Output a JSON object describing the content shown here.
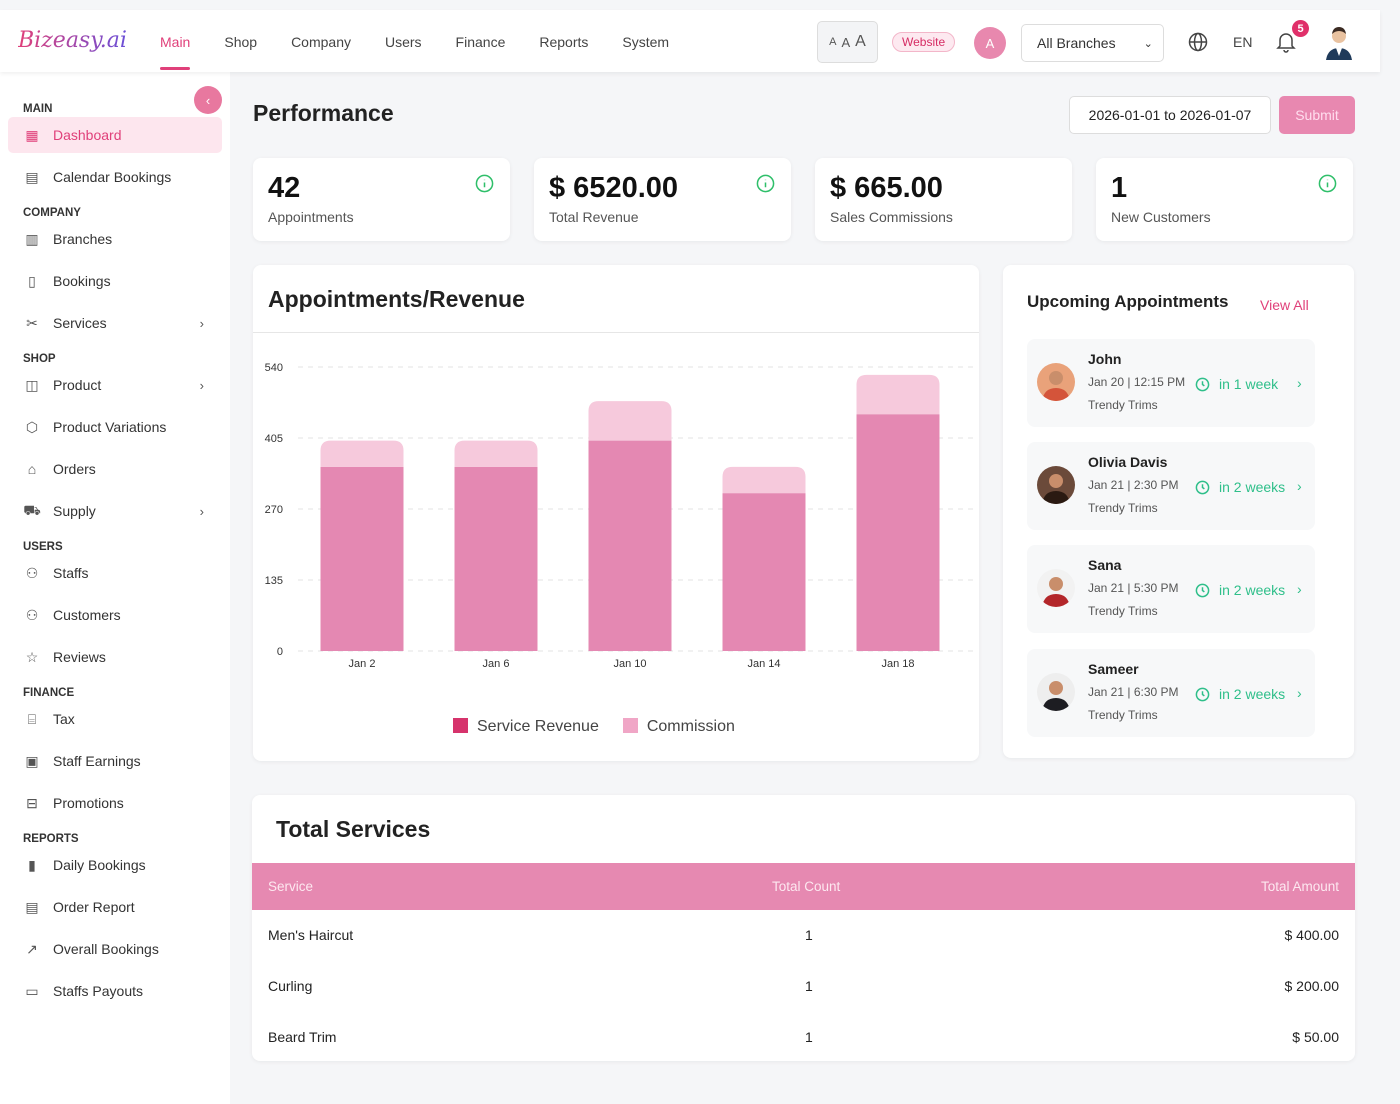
{
  "header": {
    "logo": "Bizeasy.ai",
    "nav": [
      "Main",
      "Shop",
      "Company",
      "Users",
      "Finance",
      "Reports",
      "System"
    ],
    "active_nav": "Main",
    "font_sizes": [
      "A",
      "A",
      "A"
    ],
    "website": "Website",
    "avatar_initial": "A",
    "branch_select": "All Branches",
    "language": "EN",
    "notifications": "5"
  },
  "sidebar": {
    "sections": [
      {
        "label": "MAIN",
        "items": [
          {
            "label": "Dashboard",
            "icon": "grid-icon",
            "active": true
          },
          {
            "label": "Calendar Bookings",
            "icon": "calendar-icon"
          }
        ]
      },
      {
        "label": "COMPANY",
        "items": [
          {
            "label": "Branches",
            "icon": "building-icon"
          },
          {
            "label": "Bookings",
            "icon": "book-icon"
          },
          {
            "label": "Services",
            "icon": "scissors-icon",
            "chevron": true
          }
        ]
      },
      {
        "label": "SHOP",
        "items": [
          {
            "label": "Product",
            "icon": "bag-icon",
            "chevron": true
          },
          {
            "label": "Product Variations",
            "icon": "box-icon"
          },
          {
            "label": "Orders",
            "icon": "lock-icon"
          },
          {
            "label": "Supply",
            "icon": "truck-icon",
            "chevron": true
          }
        ]
      },
      {
        "label": "USERS",
        "items": [
          {
            "label": "Staffs",
            "icon": "users-icon"
          },
          {
            "label": "Customers",
            "icon": "users-icon"
          },
          {
            "label": "Reviews",
            "icon": "star-icon"
          }
        ]
      },
      {
        "label": "FINANCE",
        "items": [
          {
            "label": "Tax",
            "icon": "bank-icon"
          },
          {
            "label": "Staff Earnings",
            "icon": "wallet-icon"
          },
          {
            "label": "Promotions",
            "icon": "ticket-icon"
          }
        ]
      },
      {
        "label": "REPORTS",
        "items": [
          {
            "label": "Daily Bookings",
            "icon": "bar-chart-icon"
          },
          {
            "label": "Order Report",
            "icon": "file-icon"
          },
          {
            "label": "Overall Bookings",
            "icon": "trend-icon"
          },
          {
            "label": "Staffs Payouts",
            "icon": "card-icon"
          }
        ]
      }
    ]
  },
  "page": {
    "title": "Performance",
    "date_range": "2026-01-01 to 2026-01-07",
    "submit": "Submit"
  },
  "stats": [
    {
      "value": "42",
      "label": "Appointments",
      "info": true
    },
    {
      "value": "$ 6520.00",
      "label": "Total Revenue",
      "info": true
    },
    {
      "value": "$ 665.00",
      "label": "Sales Commissions",
      "info": false
    },
    {
      "value": "1",
      "label": "New Customers",
      "info": true
    }
  ],
  "chart_data": {
    "type": "bar",
    "stacked": true,
    "title": "Appointments/Revenue",
    "categories": [
      "Jan 2",
      "Jan 6",
      "Jan 10",
      "Jan 14",
      "Jan 18"
    ],
    "series": [
      {
        "name": "Service Revenue",
        "values": [
          350,
          350,
          400,
          300,
          450
        ],
        "color": "#e488b2"
      },
      {
        "name": "Commission",
        "values": [
          50,
          50,
          75,
          50,
          75
        ],
        "color": "#f6c9dc"
      }
    ],
    "yticks": [
      0,
      135,
      270,
      405,
      540
    ],
    "ylim": [
      0,
      540
    ],
    "grid": true,
    "legend": "bottom",
    "legend_colors": [
      "#d6336c",
      "#f0a6c6"
    ]
  },
  "upcoming": {
    "title": "Upcoming Appointments",
    "view_all": "View All",
    "items": [
      {
        "name": "John",
        "datetime": "Jan 20 | 12:15 PM",
        "branch": "Trendy Trims",
        "relative": "in 1 week"
      },
      {
        "name": "Olivia Davis",
        "datetime": "Jan 21 | 2:30 PM",
        "branch": "Trendy Trims",
        "relative": "in 2 weeks"
      },
      {
        "name": "Sana",
        "datetime": "Jan 21 | 5:30 PM",
        "branch": "Trendy Trims",
        "relative": "in 2 weeks"
      },
      {
        "name": "Sameer",
        "datetime": "Jan 21 | 6:30 PM",
        "branch": "Trendy Trims",
        "relative": "in 2 weeks"
      }
    ]
  },
  "services": {
    "title": "Total Services",
    "columns": [
      "Service",
      "Total Count",
      "Total Amount"
    ],
    "rows": [
      [
        "Men's Haircut",
        "1",
        "$ 400.00"
      ],
      [
        "Curling",
        "1",
        "$ 200.00"
      ],
      [
        "Beard Trim",
        "1",
        "$ 50.00"
      ]
    ]
  },
  "colors": {
    "accent": "#e0407a",
    "success": "#2fbf8a"
  }
}
